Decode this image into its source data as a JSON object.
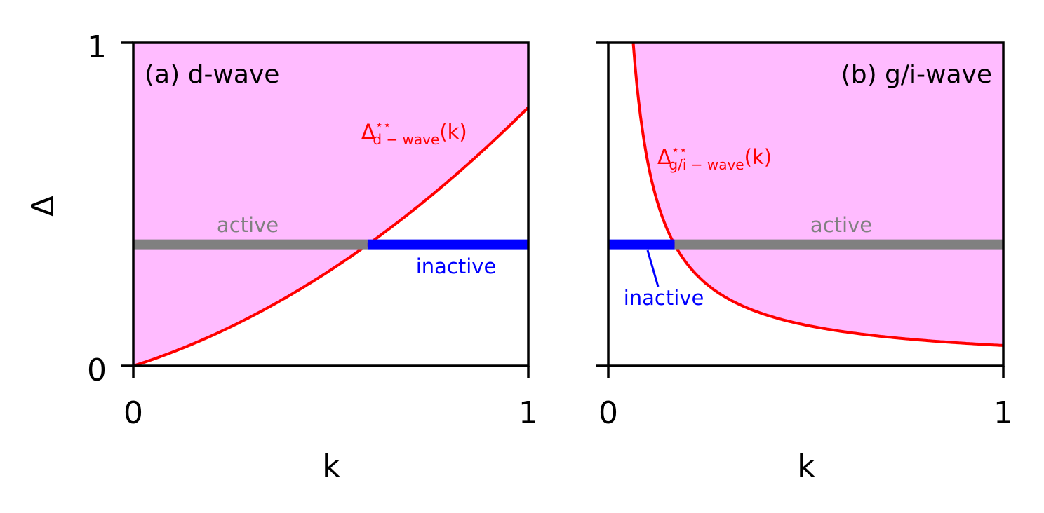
{
  "chart_data": [
    {
      "type": "line",
      "panel": "a",
      "title": "(a) d-wave",
      "xlabel": "k",
      "ylabel": "Δ",
      "xlim": [
        0,
        1
      ],
      "ylim": [
        0,
        1
      ],
      "xticks": [
        "0",
        "1"
      ],
      "yticks": [
        "0",
        "1"
      ],
      "curve": {
        "label_main": "Δ",
        "label_sup": "⋆⋆",
        "label_sub": "d − wave",
        "label_arg": "(k)",
        "color": "#ff0000",
        "formula": "0.388*k + 0.412*k^2",
        "x": [
          0,
          0.1,
          0.2,
          0.3,
          0.4,
          0.5,
          0.593,
          0.7,
          0.8,
          0.9,
          1.0
        ],
        "y": [
          0,
          0.043,
          0.094,
          0.153,
          0.221,
          0.297,
          0.375,
          0.473,
          0.574,
          0.683,
          0.8
        ]
      },
      "shaded_region": {
        "description": "above curve",
        "color": "#ffbbff"
      },
      "horizontal_line": {
        "y": 0.375,
        "segments": [
          {
            "x_start": 0,
            "x_end": 0.593,
            "color": "#808080",
            "label": "active"
          },
          {
            "x_start": 0.593,
            "x_end": 1,
            "color": "#0000ff",
            "label": "inactive"
          }
        ]
      }
    },
    {
      "type": "line",
      "panel": "b",
      "title": "(b) g/i-wave",
      "xlabel": "k",
      "ylabel": "",
      "xlim": [
        0,
        1
      ],
      "ylim": [
        0,
        1
      ],
      "xticks": [
        "0",
        "1"
      ],
      "yticks": [
        "",
        ""
      ],
      "curve": {
        "label_main": "Δ",
        "label_sup": "⋆⋆",
        "label_sub": "g/i − wave",
        "label_arg": "(k)",
        "color": "#ff0000",
        "formula": "0.063/k",
        "x": [
          0.063,
          0.08,
          0.1,
          0.168,
          0.2,
          0.3,
          0.4,
          0.5,
          0.6,
          0.7,
          0.8,
          0.9,
          1.0
        ],
        "y": [
          1.0,
          0.788,
          0.63,
          0.375,
          0.315,
          0.21,
          0.158,
          0.126,
          0.105,
          0.09,
          0.079,
          0.07,
          0.063
        ]
      },
      "shaded_region": {
        "description": "above curve",
        "color": "#ffbbff"
      },
      "horizontal_line": {
        "y": 0.375,
        "segments": [
          {
            "x_start": 0,
            "x_end": 0.168,
            "color": "#0000ff",
            "label": "inactive"
          },
          {
            "x_start": 0.168,
            "x_end": 1,
            "color": "#808080",
            "label": "active"
          }
        ]
      }
    }
  ],
  "colors": {
    "fill": "#ffbbff",
    "curve": "#ff0000",
    "active": "#808080",
    "inactive": "#0000ff",
    "axes": "#000000"
  }
}
